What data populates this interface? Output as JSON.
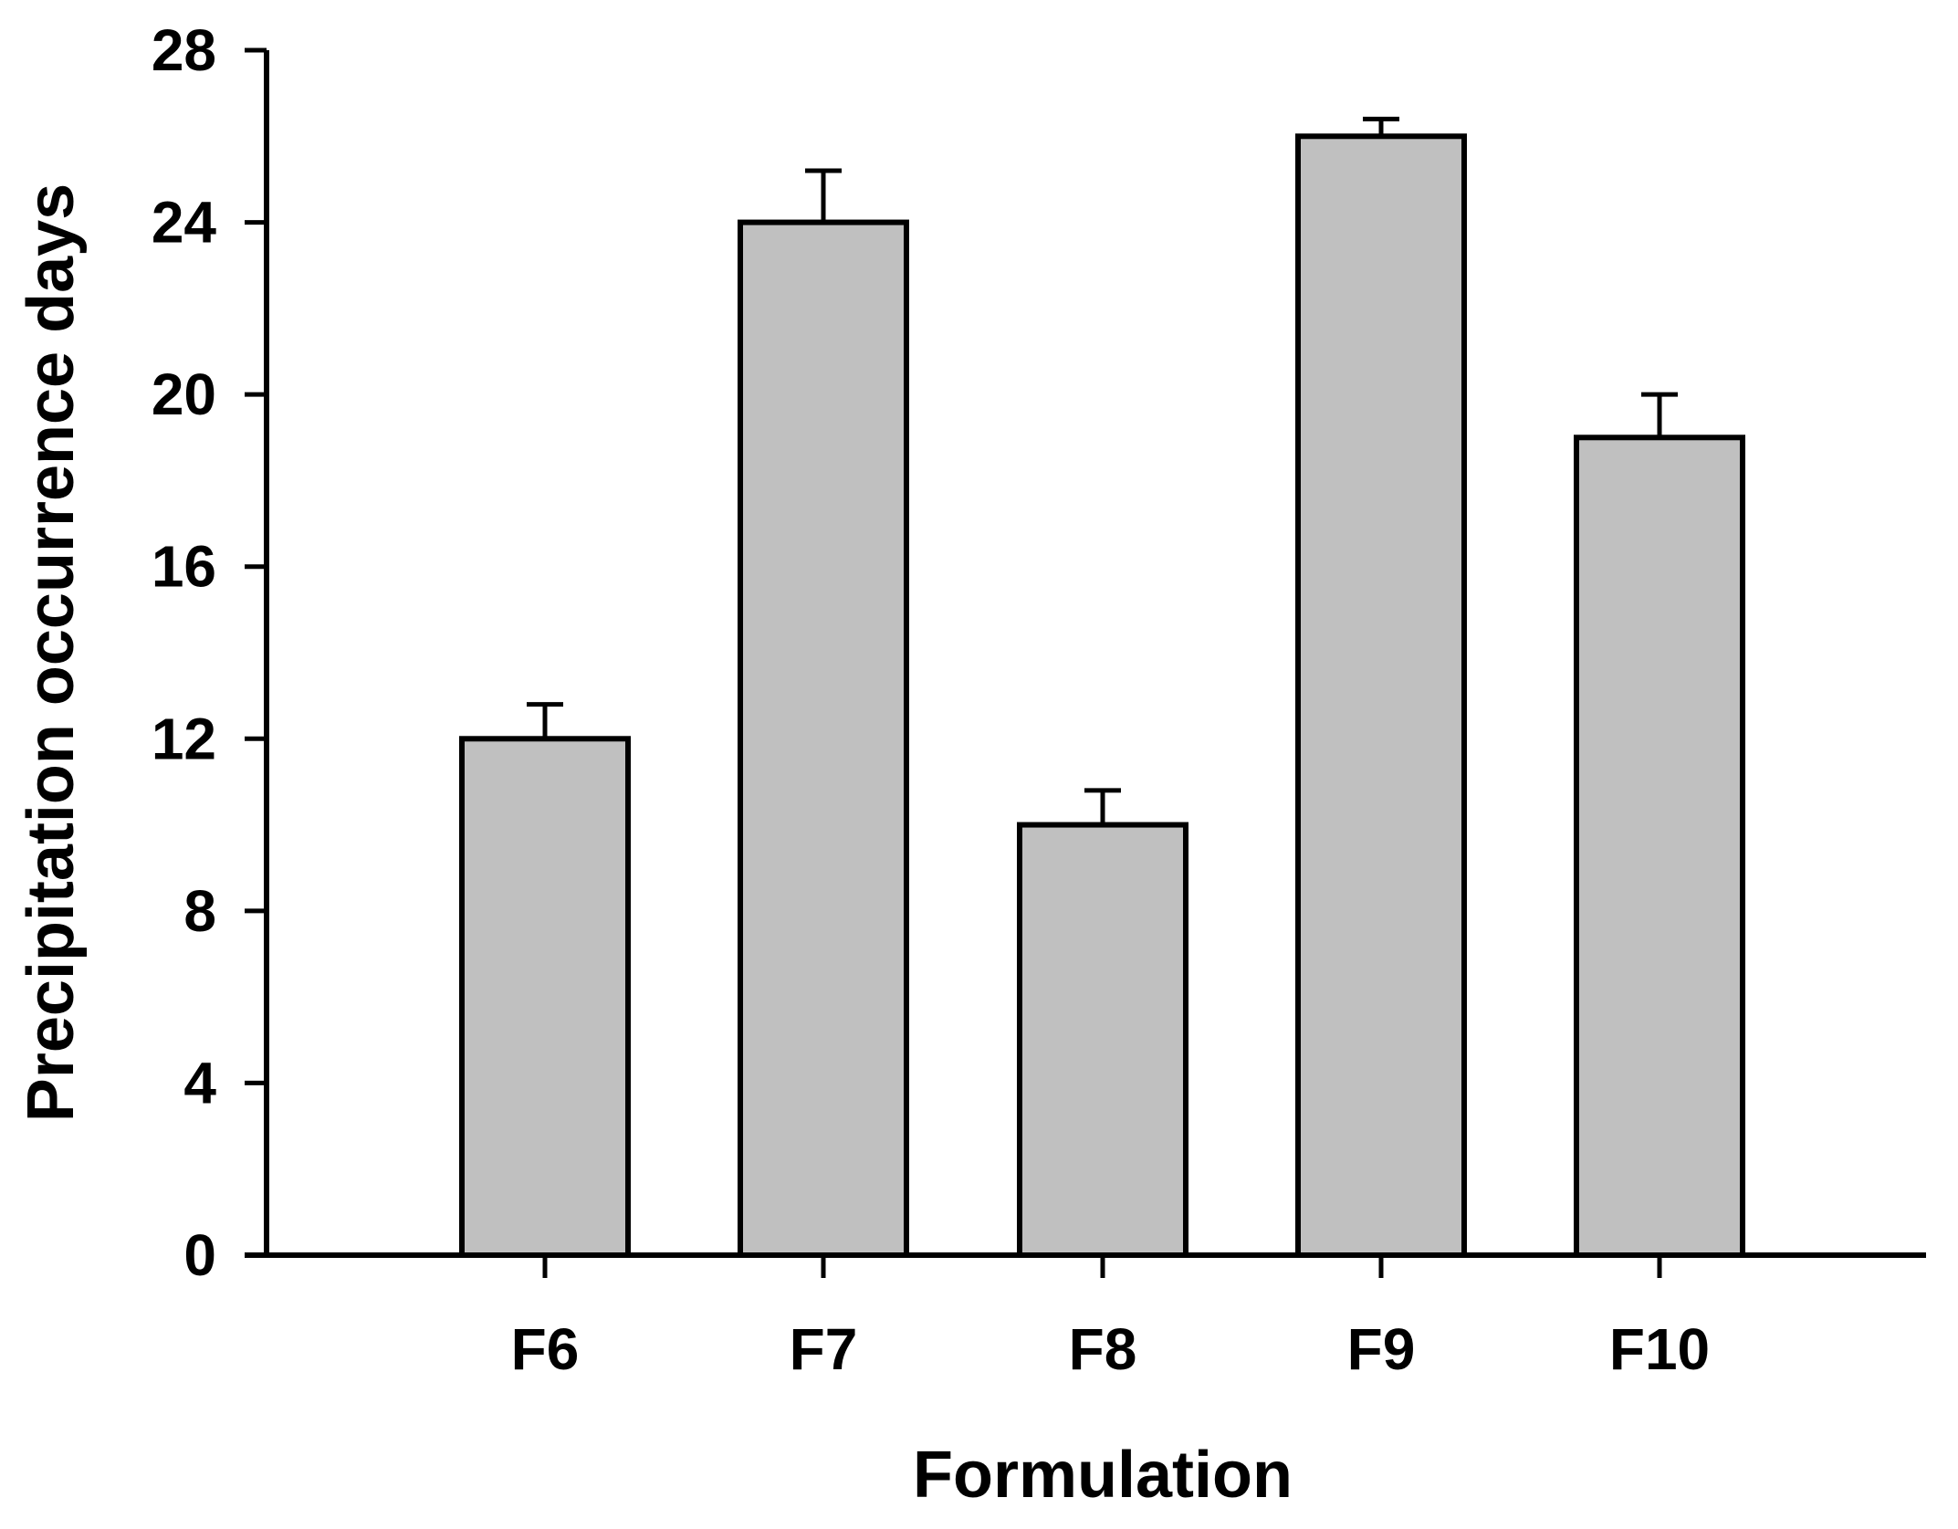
{
  "chart_data": {
    "type": "bar",
    "title": "",
    "xlabel": "Formulation",
    "ylabel": "Precipitation occurrence days",
    "categories": [
      "F6",
      "F7",
      "F8",
      "F9",
      "F10"
    ],
    "values": [
      12,
      24,
      10,
      26,
      19
    ],
    "errors": [
      0.8,
      1.2,
      0.8,
      0.4,
      1.0
    ],
    "ylim": [
      0,
      28
    ],
    "yticks": [
      0,
      4,
      8,
      12,
      16,
      20,
      24,
      28
    ],
    "ytick_labels": [
      "0",
      "4",
      "8",
      "12",
      "16",
      "20",
      "24",
      "28"
    ],
    "grid": false,
    "legend": "none",
    "bar_color": "#c0c0c0",
    "edge_color": "#000000"
  }
}
